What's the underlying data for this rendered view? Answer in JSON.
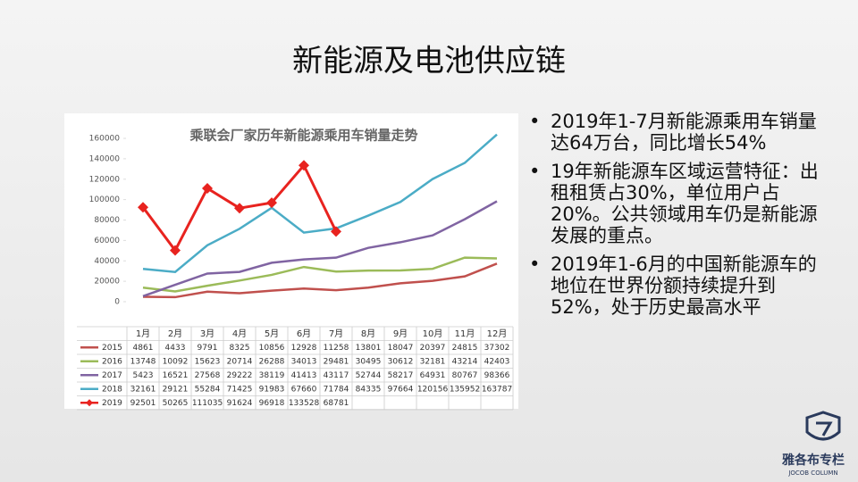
{
  "slide": {
    "title": "新能源及电池供应链",
    "bullets": [
      "2019年1-7月新能源乘用车销量达64万台，同比增长54%",
      "19年新能源车区域运营特征：出租租赁占30%，单位用户占20%。公共领域用车仍是新能源发展的重点。",
      "2019年1-6月的中国新能源车的地位在世界份额持续提升到52%，处于历史最高水平"
    ],
    "logo": [
      "雅各布专栏",
      "JOCOB COLUMN"
    ]
  },
  "chart_data": {
    "type": "line",
    "title": "乘联会厂家历年新能源乘用车销量走势",
    "categories": [
      "1月",
      "2月",
      "3月",
      "4月",
      "5月",
      "6月",
      "7月",
      "8月",
      "9月",
      "10月",
      "11月",
      "12月"
    ],
    "ylim": [
      0,
      160000
    ],
    "yticks": [
      0,
      20000,
      40000,
      60000,
      80000,
      100000,
      120000,
      140000,
      160000
    ],
    "series": [
      {
        "name": "2015",
        "color": "#c0504d",
        "values": [
          4861,
          4433,
          9791,
          8325,
          10856,
          12928,
          11258,
          13801,
          18047,
          20397,
          24815,
          37302
        ]
      },
      {
        "name": "2016",
        "color": "#9bbb59",
        "values": [
          13748,
          10092,
          15623,
          20714,
          26288,
          34013,
          29481,
          30495,
          30612,
          32181,
          43214,
          42403
        ]
      },
      {
        "name": "2017",
        "color": "#8064a2",
        "values": [
          5423,
          16521,
          27568,
          29222,
          38119,
          41413,
          43117,
          52744,
          58217,
          64931,
          80767,
          98366
        ]
      },
      {
        "name": "2018",
        "color": "#4bacc6",
        "values": [
          32161,
          29121,
          55284,
          71425,
          91983,
          67660,
          71784,
          84335,
          97664,
          120156,
          135952,
          163787
        ]
      },
      {
        "name": "2019",
        "color": "#e8231f",
        "marker": "diamond",
        "values": [
          92501,
          50265,
          111035,
          91624,
          96918,
          133528,
          68781,
          null,
          null,
          null,
          null,
          null
        ]
      }
    ]
  }
}
